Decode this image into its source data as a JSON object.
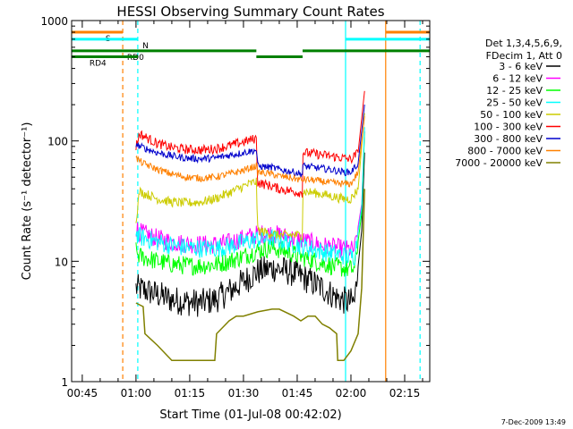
{
  "chart_data": {
    "type": "line",
    "title": "HESSI Observing Summary Count Rates",
    "xlabel": "Start Time (01-Jul-08 00:42:02)",
    "ylabel": "Count Rate (s⁻¹ detector⁻¹)",
    "footer": "7-Dec-2009 13:49",
    "x_unit": "minutes after 00:00 UT",
    "xlim": [
      42.03,
      142
    ],
    "ylim": [
      1,
      1000
    ],
    "yscale": "log",
    "x_ticks": [
      {
        "value": 45,
        "label": "00:45"
      },
      {
        "value": 60,
        "label": "01:00"
      },
      {
        "value": 75,
        "label": "01:15"
      },
      {
        "value": 90,
        "label": "01:30"
      },
      {
        "value": 105,
        "label": "01:45"
      },
      {
        "value": 120,
        "label": "02:00"
      },
      {
        "value": 135,
        "label": "02:15"
      }
    ],
    "y_ticks": [
      {
        "value": 1,
        "label": "1"
      },
      {
        "value": 10,
        "label": "10"
      },
      {
        "value": 100,
        "label": "100"
      },
      {
        "value": 1000,
        "label": "1000"
      }
    ],
    "legend": {
      "placement": "right",
      "header": [
        "Det 1,3,4,5,6,9,",
        "FDecim 1, Att 0"
      ]
    },
    "series": [
      {
        "name": "3 - 6 keV",
        "color": "#000000",
        "noise": 0.12,
        "x": [
          60,
          62,
          66,
          70,
          74,
          78,
          82,
          86,
          90,
          94,
          98,
          100,
          104,
          108,
          112,
          116,
          119,
          121,
          123,
          123.8
        ],
        "y": [
          6,
          5.8,
          5.3,
          4.8,
          4.6,
          4.5,
          4.8,
          5.6,
          6.8,
          8.2,
          8.8,
          8.6,
          8,
          7,
          6,
          5,
          4.6,
          4.6,
          18,
          80
        ]
      },
      {
        "name": "6 - 12 keV",
        "color": "#ff00ff",
        "noise": 0.08,
        "x": [
          60,
          61,
          66,
          70,
          74,
          78,
          82,
          86,
          90,
          94,
          98,
          100,
          104,
          108,
          112,
          116,
          119,
          121,
          123,
          123.8
        ],
        "y": [
          19,
          17.5,
          15.5,
          14.5,
          14,
          13.8,
          13.8,
          14.3,
          15.5,
          16.8,
          17,
          16.5,
          15.5,
          14.5,
          13.5,
          13,
          12.5,
          12.5,
          30,
          120
        ]
      },
      {
        "name": "12 - 25 keV",
        "color": "#00ff00",
        "noise": 0.08,
        "x": [
          60,
          61,
          66,
          70,
          74,
          78,
          82,
          86,
          90,
          94,
          98,
          100,
          104,
          108,
          112,
          116,
          119,
          121,
          123,
          123.8
        ],
        "y": [
          12,
          11,
          10,
          9.5,
          9.2,
          9.2,
          9.4,
          10,
          11,
          12.3,
          13,
          12.5,
          11.5,
          10.5,
          9.6,
          9,
          8.6,
          8.6,
          25,
          120
        ]
      },
      {
        "name": "25 - 50 keV",
        "color": "#00ffff",
        "noise": 0.08,
        "x": [
          60,
          61,
          66,
          70,
          74,
          78,
          82,
          86,
          90,
          94,
          98,
          100,
          104,
          108,
          112,
          116,
          119,
          121,
          123,
          123.8
        ],
        "y": [
          17,
          16,
          14.5,
          13.5,
          13,
          12.8,
          12.8,
          13.3,
          14.3,
          15.3,
          15.5,
          15,
          14,
          13,
          12,
          11.5,
          11,
          11,
          28,
          130
        ]
      },
      {
        "name": "50 - 100 keV",
        "color": "#cccc00",
        "noise": 0.04,
        "x": [
          60,
          61,
          63,
          66,
          70,
          74,
          78,
          82,
          86,
          90,
          93.6,
          94,
          98,
          100,
          104,
          106.4,
          106.5,
          110,
          114,
          118,
          120,
          122,
          123.8
        ],
        "y": [
          22,
          38,
          36,
          33,
          31,
          30.5,
          31,
          33,
          37,
          42,
          46,
          18,
          17,
          16.5,
          16.5,
          16.5,
          38,
          37,
          35,
          33,
          33,
          40,
          170
        ]
      },
      {
        "name": "100 - 300 keV",
        "color": "#ff0000",
        "noise": 0.04,
        "x": [
          60,
          61,
          62,
          66,
          70,
          74,
          78,
          82,
          86,
          90,
          93.6,
          94,
          98,
          100,
          104,
          106.4,
          106.5,
          110,
          114,
          118,
          120,
          122,
          123.8
        ],
        "y": [
          90,
          115,
          110,
          95,
          88,
          85,
          84,
          86,
          91,
          98,
          105,
          45,
          42,
          40,
          38,
          37,
          80,
          78,
          75,
          72,
          70,
          80,
          260
        ]
      },
      {
        "name": "300 - 800 keV",
        "color": "#0000cc",
        "noise": 0.03,
        "x": [
          60,
          61,
          62,
          66,
          70,
          74,
          78,
          82,
          86,
          90,
          93.6,
          94,
          98,
          100,
          104,
          106.4,
          106.5,
          110,
          114,
          118,
          120,
          122,
          123.8
        ],
        "y": [
          95,
          90,
          88,
          80,
          75,
          72,
          71,
          72,
          76,
          80,
          84,
          62,
          60,
          58,
          55,
          53,
          62,
          60,
          58,
          55,
          55,
          65,
          200
        ]
      },
      {
        "name": "800 - 7000 keV",
        "color": "#ff8000",
        "noise": 0.03,
        "x": [
          60,
          61,
          62,
          66,
          70,
          74,
          78,
          82,
          86,
          90,
          93.6,
          94,
          98,
          100,
          104,
          106.4,
          106.5,
          110,
          114,
          118,
          120,
          122,
          123.8
        ],
        "y": [
          72,
          68,
          65,
          58,
          53,
          50,
          49,
          50,
          53,
          57,
          62,
          55,
          53,
          51,
          49,
          47,
          48,
          47,
          45,
          44,
          44,
          55,
          160
        ]
      },
      {
        "name": "7000 - 20000 keV",
        "color": "#808000",
        "noise": 0,
        "x": [
          60,
          62,
          62.5,
          66,
          70,
          74,
          78,
          82,
          82.5,
          86,
          88,
          90,
          94,
          98,
          100,
          104,
          106,
          108,
          110,
          112,
          114,
          116,
          116.3,
          118,
          120,
          122,
          123,
          123.8
        ],
        "y": [
          4.5,
          4.2,
          2.5,
          2,
          1.5,
          1.5,
          1.5,
          1.5,
          2.5,
          3.2,
          3.5,
          3.5,
          3.8,
          4,
          4,
          3.5,
          3.2,
          3.5,
          3.5,
          3,
          2.8,
          2.5,
          1.5,
          1.5,
          1.8,
          2.5,
          6,
          40
        ]
      }
    ],
    "vertical_markers": [
      {
        "x": 56.3,
        "color": "#ff8000",
        "style": "dashed"
      },
      {
        "x": 60.5,
        "color": "#00ffff",
        "style": "dashed"
      },
      {
        "x": 118.5,
        "color": "#00ffff",
        "style": "solid"
      },
      {
        "x": 129.7,
        "color": "#ff8000",
        "style": "solid"
      },
      {
        "x": 139.3,
        "color": "#00ffff",
        "style": "dashed"
      }
    ],
    "status_bars": [
      {
        "label": "S",
        "color": "#ff8000",
        "segments": [
          [
            42.03,
            56.3
          ],
          [
            129.7,
            142
          ]
        ],
        "y": 800,
        "label_x": 51.5
      },
      {
        "label": "N",
        "color": "#00ffff",
        "segments": [
          [
            42.03,
            60.5
          ],
          [
            118.5,
            142
          ]
        ],
        "y": 700,
        "label_x": 61.8
      },
      {
        "label": "RD0",
        "color": "#008000",
        "segments": [
          [
            42.03,
            93.6
          ],
          [
            106.5,
            142
          ]
        ],
        "y": 560,
        "label_x": 57.5
      },
      {
        "label": "",
        "color": "#008000",
        "segments": [
          [
            93.6,
            106.5
          ]
        ],
        "y": 500
      },
      {
        "label": "RD4",
        "color": "#008000",
        "segments": [
          [
            42.03,
            60.5
          ]
        ],
        "y": 500,
        "label_x": 47
      }
    ]
  }
}
